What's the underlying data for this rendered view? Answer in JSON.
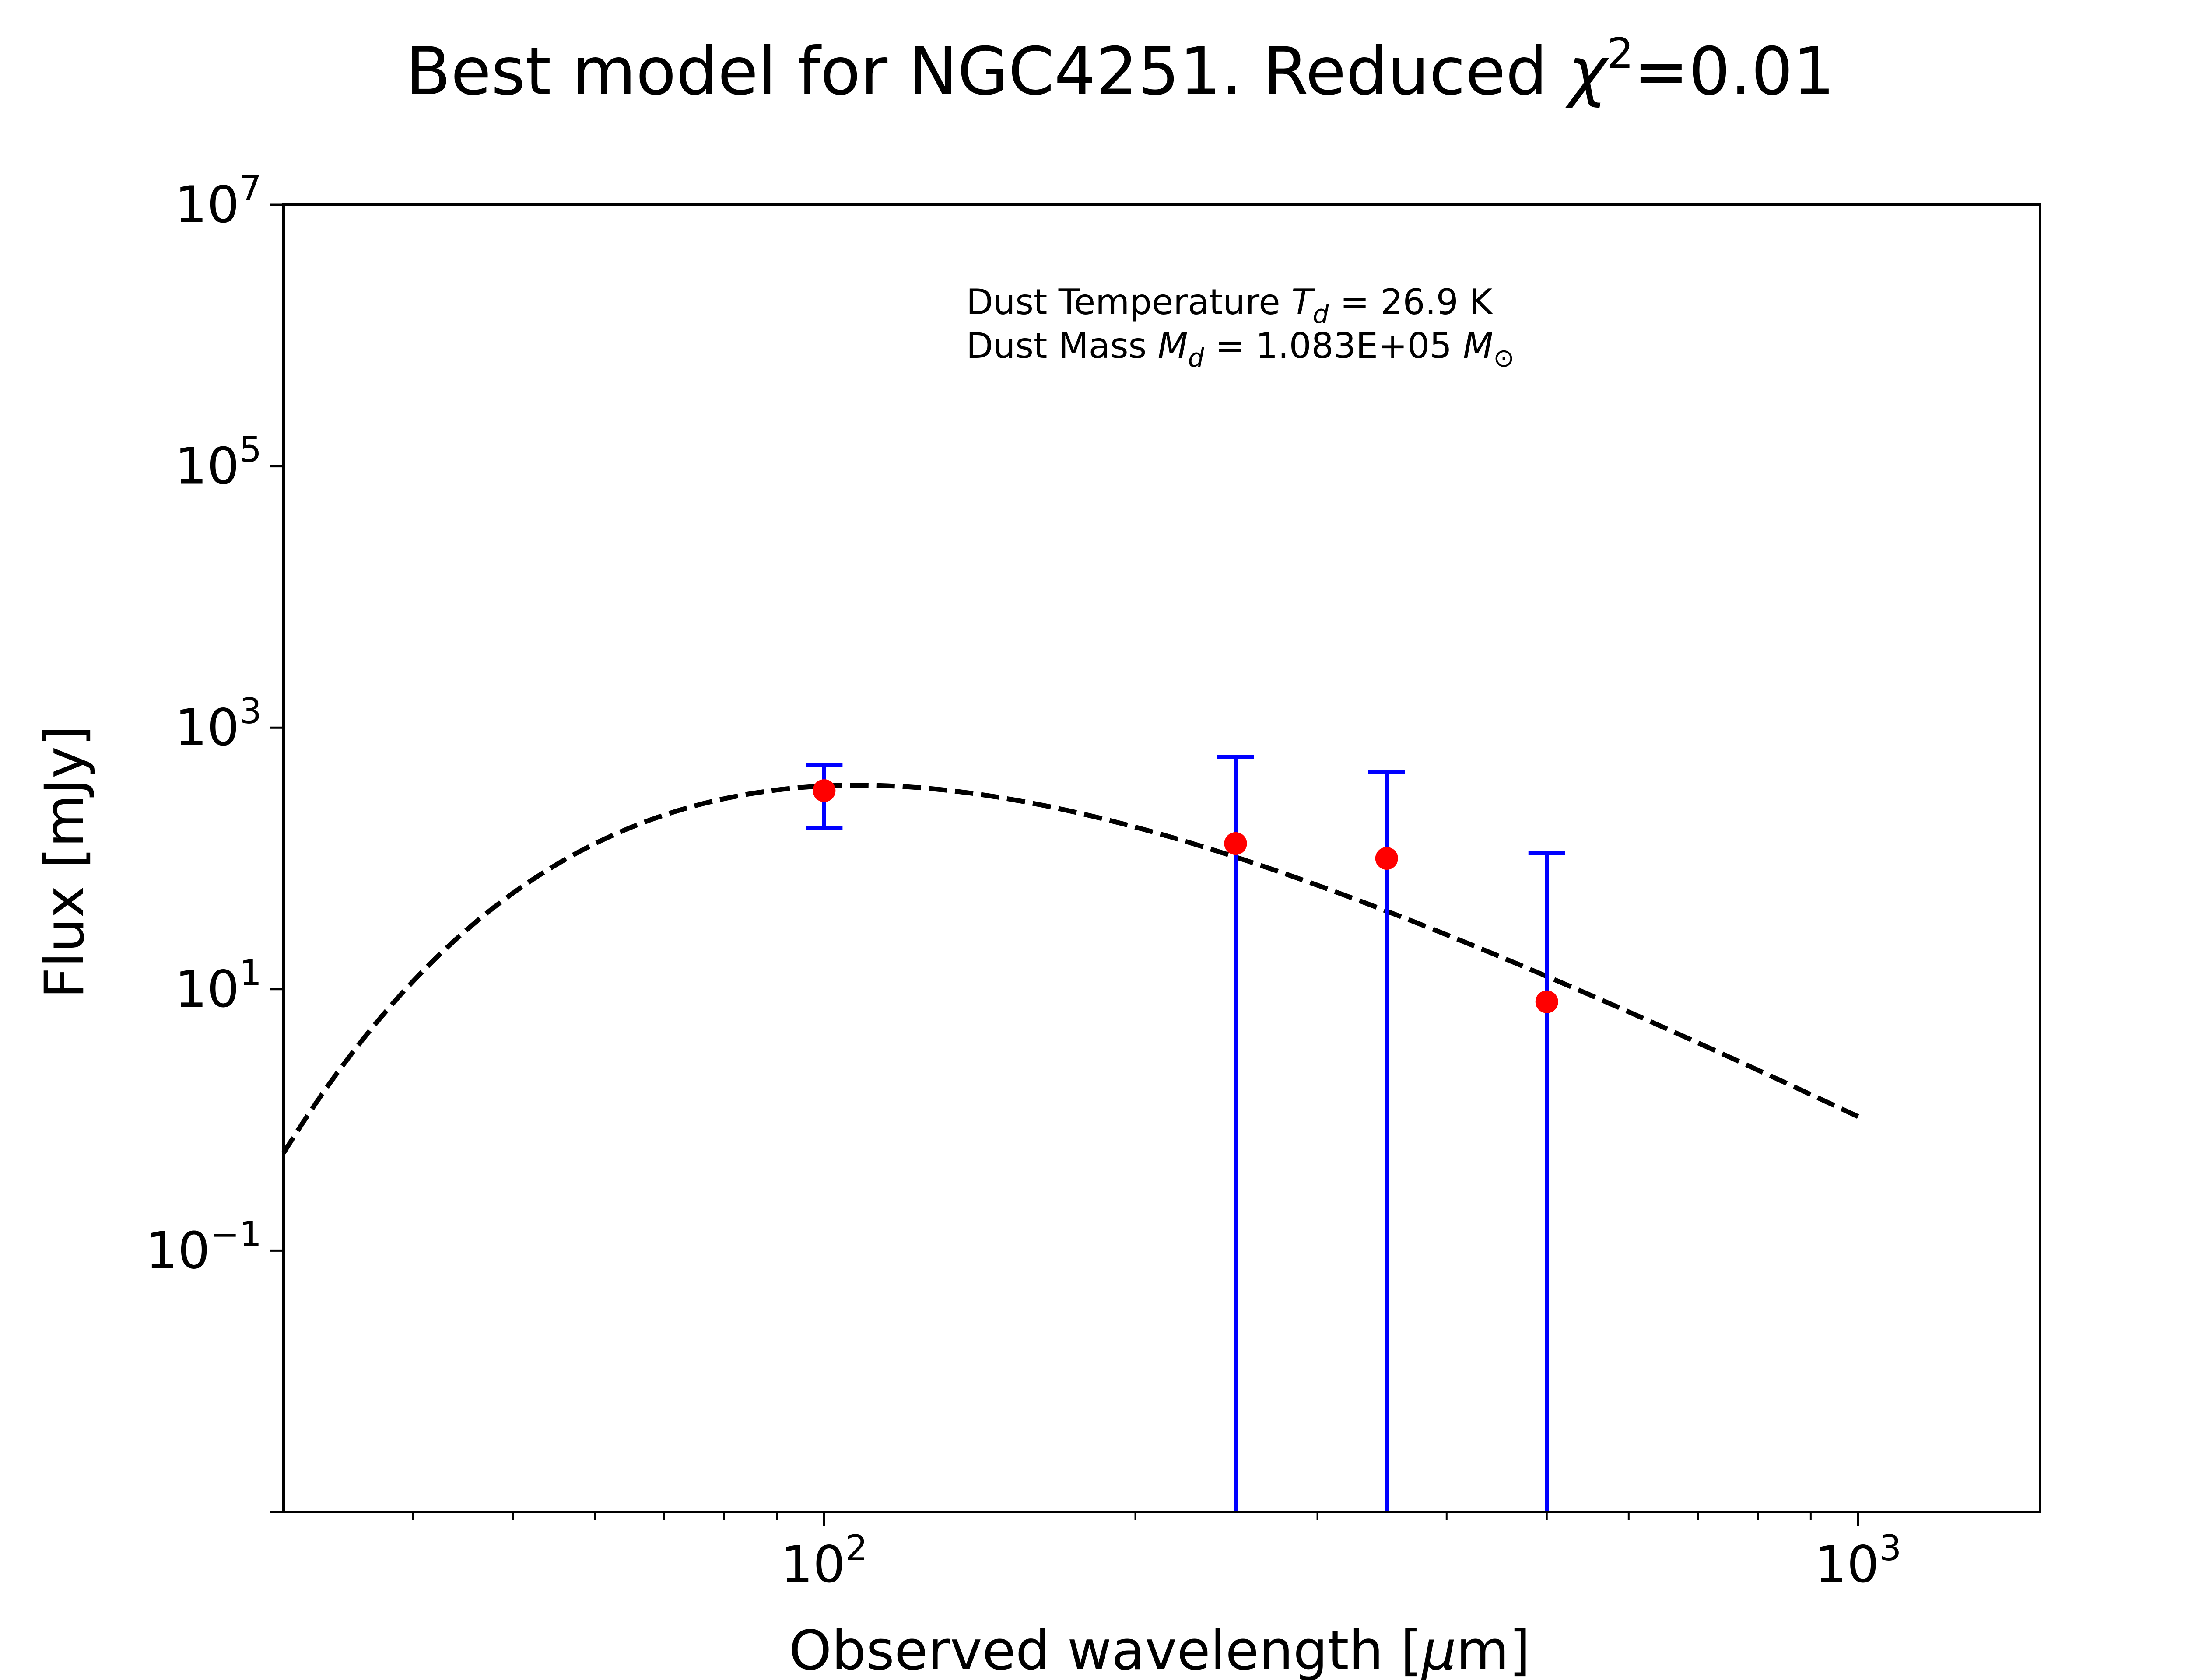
{
  "chart_data": {
    "type": "scatter",
    "title_prefix": "Best model for NGC4251. Reduced ",
    "title_chi": "χ",
    "title_chi_exp": "2",
    "title_suffix": "=0.01",
    "xlabel_prefix": "Observed wavelength [",
    "xlabel_mu": "μ",
    "xlabel_suffix": "m]",
    "ylabel": "Flux [mJy]",
    "x_scale": "log",
    "y_scale": "log",
    "xlim": [
      30,
      1500
    ],
    "ylim": [
      0.001,
      10000000
    ],
    "x_ticks": [
      {
        "value": 100,
        "base": "10",
        "exp": "2"
      },
      {
        "value": 1000,
        "base": "10",
        "exp": "3"
      }
    ],
    "y_ticks": [
      {
        "value": 0.1,
        "base": "10",
        "exp": "−1"
      },
      {
        "value": 10,
        "base": "10",
        "exp": "1"
      },
      {
        "value": 1000,
        "base": "10",
        "exp": "3"
      },
      {
        "value": 100000,
        "base": "10",
        "exp": "5"
      },
      {
        "value": 10000000,
        "base": "10",
        "exp": "7"
      }
    ],
    "annotation": {
      "temp_prefix": "Dust Temperature ",
      "temp_sym": "T",
      "temp_sub": "d",
      "temp_value": " = 26.9 K",
      "mass_prefix": "Dust Mass ",
      "mass_sym": "M",
      "mass_sub": "d",
      "mass_value": " = 1.083E+05 ",
      "mass_unit_sym": "M",
      "mass_unit_sub": "⊙"
    },
    "series": [
      {
        "kind": "model",
        "style": "dashed",
        "color": "#000000",
        "temperature_K": 26.9,
        "beta": 2.0,
        "x_range": [
          30,
          1000
        ]
      },
      {
        "kind": "observed",
        "marker_color": "#ff0000",
        "errorbar_color": "#0000ff",
        "points": [
          {
            "x": 100,
            "y": 330,
            "y_low": 170,
            "y_high": 520
          },
          {
            "x": 250,
            "y": 130,
            "y_low": 0.001,
            "y_high": 600
          },
          {
            "x": 350,
            "y": 100,
            "y_low": 0.001,
            "y_high": 460
          },
          {
            "x": 500,
            "y": 8,
            "y_low": 0.001,
            "y_high": 110
          }
        ]
      }
    ]
  }
}
